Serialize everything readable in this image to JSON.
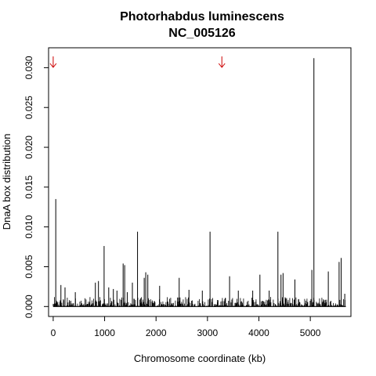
{
  "chart_data": {
    "type": "bar",
    "title": "Photorhabdus luminescens",
    "subtitle": "NC_005126",
    "xlabel": "Chromosome coordinate (kb)",
    "ylabel": "DnaA box distribution",
    "xlim": [
      -90,
      5790
    ],
    "ylim": [
      -0.00125,
      0.0325
    ],
    "x_ticks": [
      0,
      1000,
      2000,
      3000,
      4000,
      5000
    ],
    "y_ticks": [
      0.0,
      0.005,
      0.01,
      0.015,
      0.02,
      0.025,
      0.03
    ],
    "x_tick_labels": [
      "0",
      "1000",
      "2000",
      "3000",
      "4000",
      "5000"
    ],
    "y_tick_labels": [
      "0.000",
      "0.005",
      "0.010",
      "0.015",
      "0.020",
      "0.025",
      "0.030"
    ],
    "series_color": "#000000",
    "arrow_color": "#cc0000",
    "markers": [
      {
        "x": 0,
        "label": "↓"
      },
      {
        "x": 3280,
        "label": "↓"
      }
    ],
    "peaks": [
      {
        "x": 50,
        "y": 0.0135
      },
      {
        "x": 150,
        "y": 0.0027
      },
      {
        "x": 230,
        "y": 0.0024
      },
      {
        "x": 430,
        "y": 0.0018
      },
      {
        "x": 820,
        "y": 0.003
      },
      {
        "x": 880,
        "y": 0.0032
      },
      {
        "x": 990,
        "y": 0.0076
      },
      {
        "x": 1080,
        "y": 0.0024
      },
      {
        "x": 1170,
        "y": 0.0022
      },
      {
        "x": 1240,
        "y": 0.002
      },
      {
        "x": 1360,
        "y": 0.0054
      },
      {
        "x": 1390,
        "y": 0.0052
      },
      {
        "x": 1440,
        "y": 0.0018
      },
      {
        "x": 1540,
        "y": 0.003
      },
      {
        "x": 1640,
        "y": 0.0094
      },
      {
        "x": 1770,
        "y": 0.0036
      },
      {
        "x": 1800,
        "y": 0.0043
      },
      {
        "x": 1840,
        "y": 0.004
      },
      {
        "x": 2070,
        "y": 0.0026
      },
      {
        "x": 2450,
        "y": 0.0036
      },
      {
        "x": 2640,
        "y": 0.0021
      },
      {
        "x": 2900,
        "y": 0.002
      },
      {
        "x": 3050,
        "y": 0.0094
      },
      {
        "x": 3430,
        "y": 0.0038
      },
      {
        "x": 3600,
        "y": 0.002
      },
      {
        "x": 3880,
        "y": 0.002
      },
      {
        "x": 4020,
        "y": 0.004
      },
      {
        "x": 4200,
        "y": 0.002
      },
      {
        "x": 4370,
        "y": 0.0094
      },
      {
        "x": 4430,
        "y": 0.004
      },
      {
        "x": 4470,
        "y": 0.0042
      },
      {
        "x": 4700,
        "y": 0.0034
      },
      {
        "x": 5030,
        "y": 0.0046
      },
      {
        "x": 5070,
        "y": 0.0312
      },
      {
        "x": 5350,
        "y": 0.0044
      },
      {
        "x": 5560,
        "y": 0.0056
      },
      {
        "x": 5600,
        "y": 0.0061
      },
      {
        "x": 5670,
        "y": 0.0016
      }
    ],
    "x_range_data": [
      0,
      5690
    ],
    "baseline_noise_max": 0.0012
  }
}
